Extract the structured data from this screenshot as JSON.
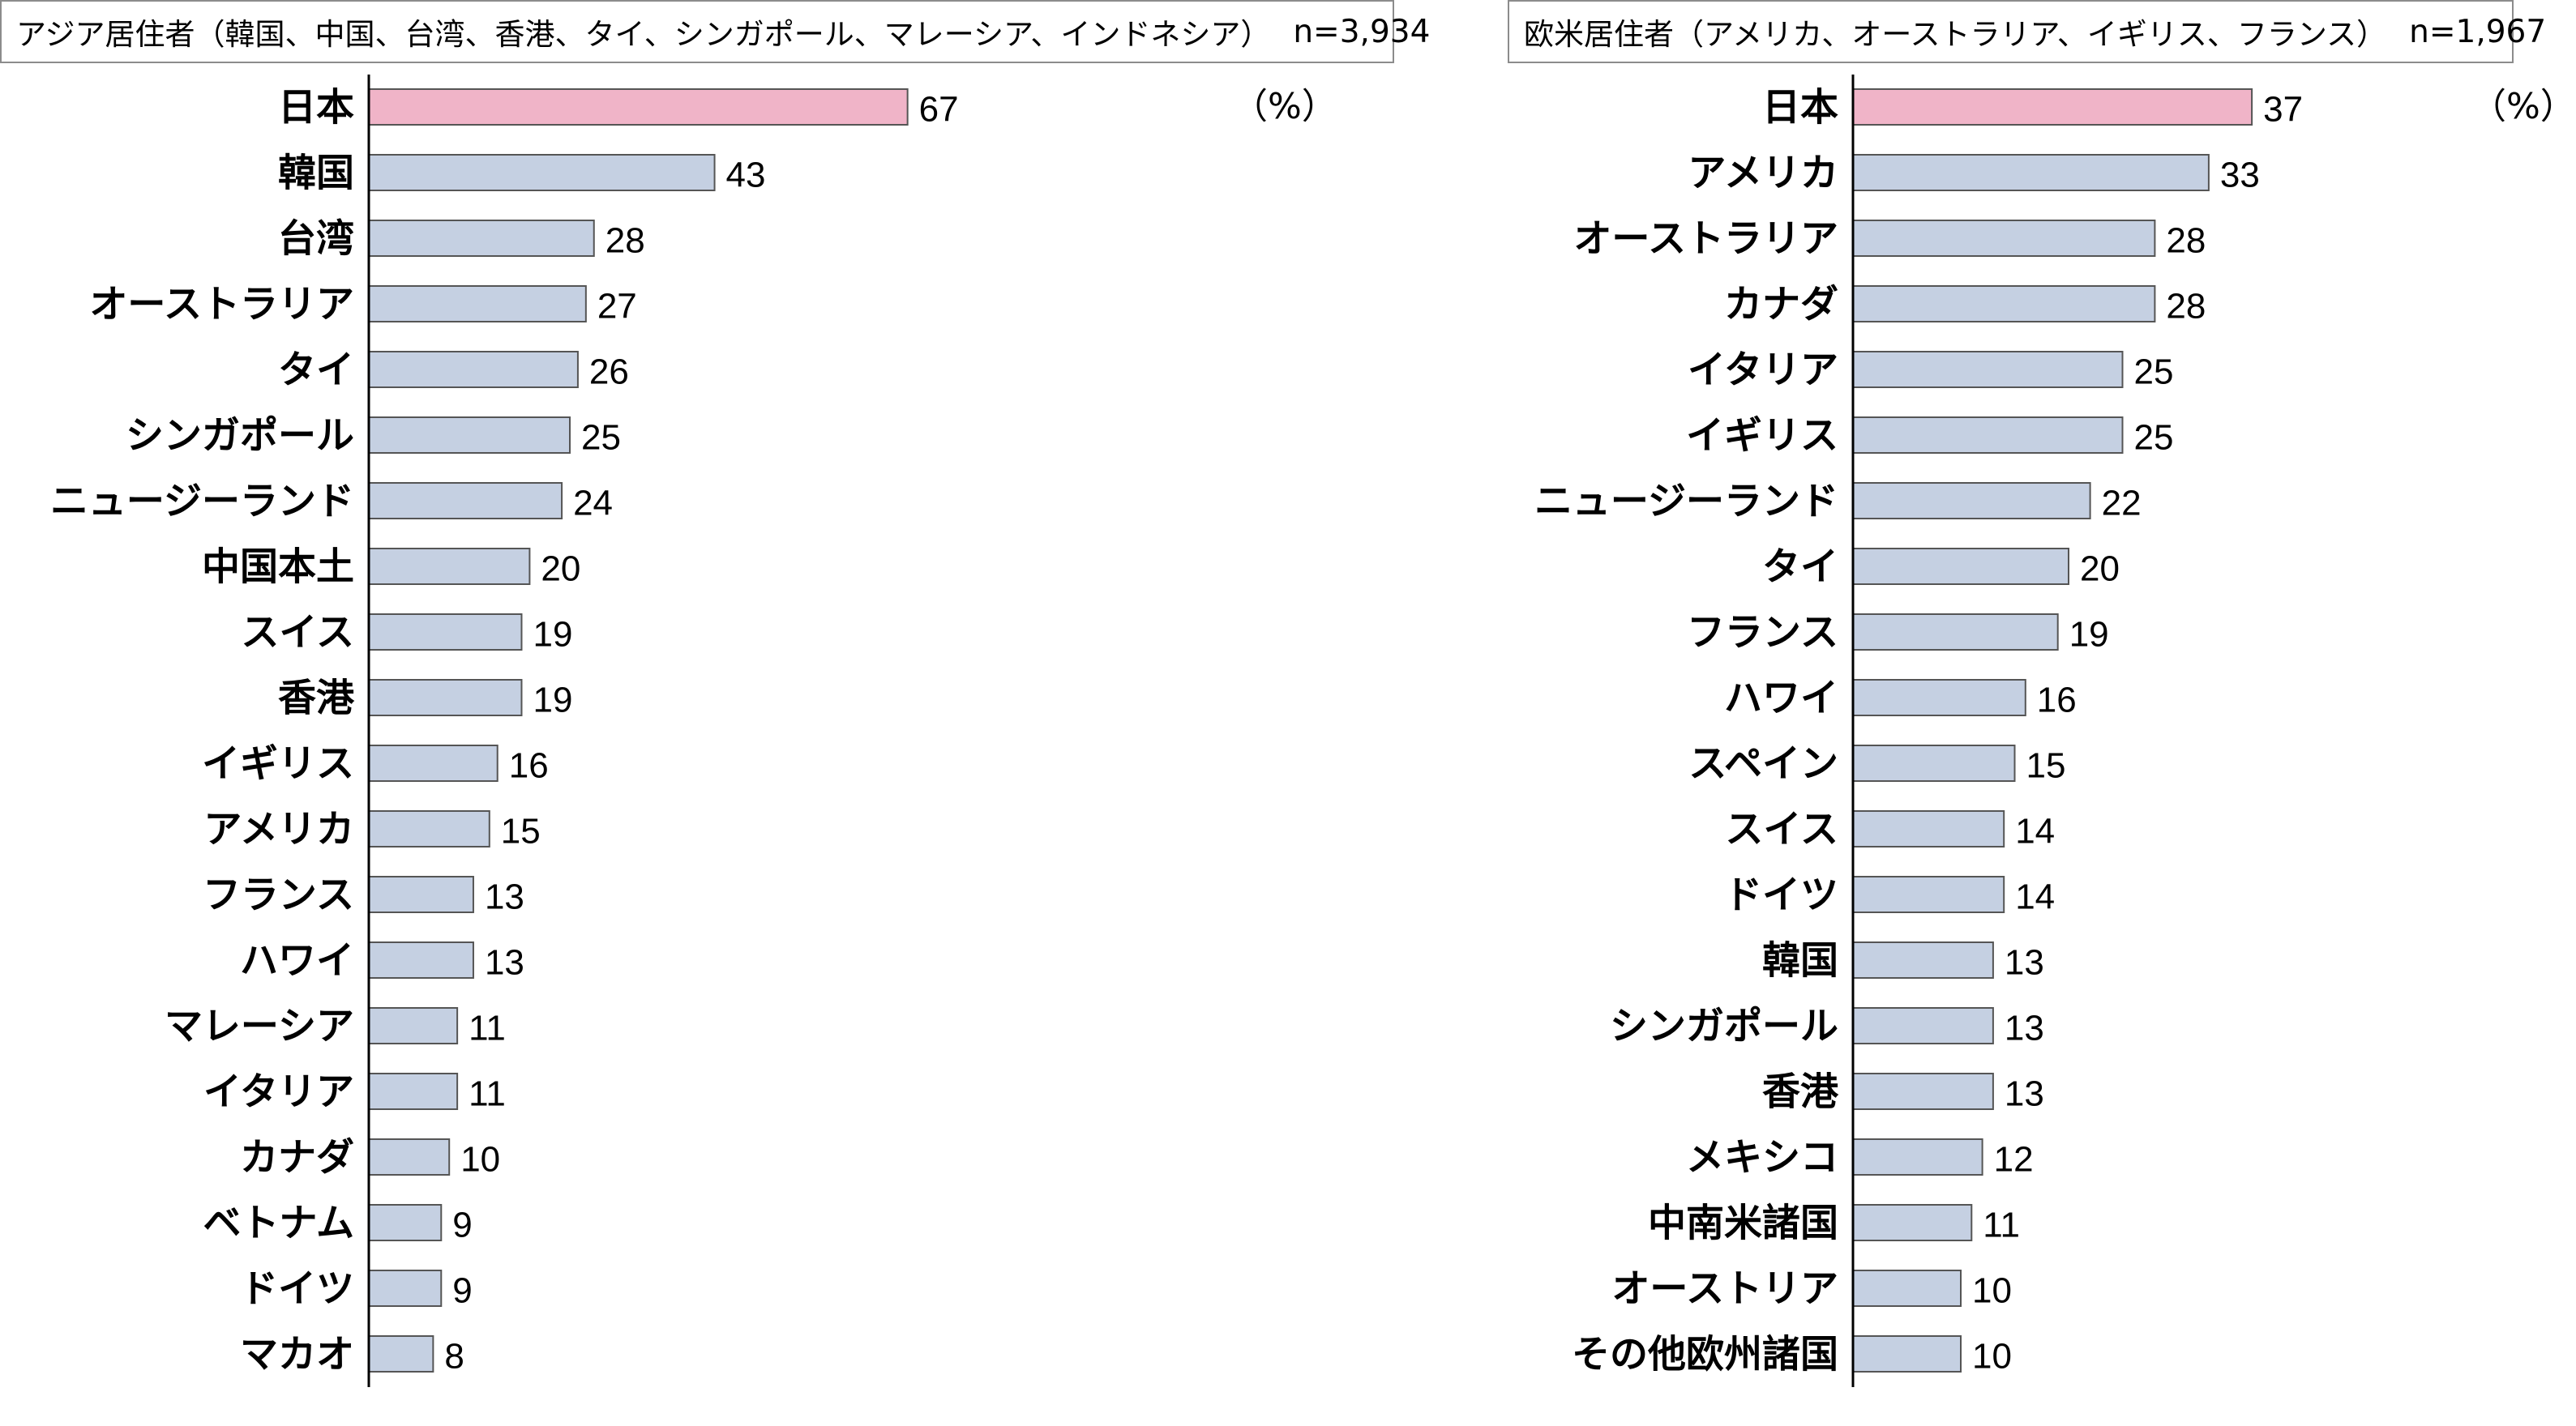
{
  "chart_data": [
    {
      "type": "bar",
      "orientation": "horizontal",
      "title": "アジア居住者（韓国、中国、台湾、香港、タイ、シンガポール、マレーシア、インドネシア）",
      "n_label": "n=3,934",
      "unit": "（%）",
      "categories": [
        "日本",
        "韓国",
        "台湾",
        "オーストラリア",
        "タイ",
        "シンガポール",
        "ニュージーランド",
        "中国本土",
        "スイス",
        "香港",
        "イギリス",
        "アメリカ",
        "フランス",
        "ハワイ",
        "マレーシア",
        "イタリア",
        "カナダ",
        "ベトナム",
        "ドイツ",
        "マカオ"
      ],
      "values": [
        67,
        43,
        28,
        27,
        26,
        25,
        24,
        20,
        19,
        19,
        16,
        15,
        13,
        13,
        11,
        11,
        10,
        9,
        9,
        8
      ],
      "highlight_category": "日本",
      "xlim": [
        0,
        100
      ],
      "grid": false,
      "colors": {
        "highlight": "#f0b4c8",
        "bar": "#c5d0e2",
        "bar_edge": "#555555",
        "axis": "#000000"
      }
    },
    {
      "type": "bar",
      "orientation": "horizontal",
      "title": "欧米居住者（アメリカ、オーストラリア、イギリス、フランス）",
      "n_label": "n=1,967",
      "unit": "（%）",
      "categories": [
        "日本",
        "アメリカ",
        "オーストラリア",
        "カナダ",
        "イタリア",
        "イギリス",
        "ニュージーランド",
        "タイ",
        "フランス",
        "ハワイ",
        "スペイン",
        "スイス",
        "ドイツ",
        "韓国",
        "シンガポール",
        "香港",
        "メキシコ",
        "中南米諸国",
        "オーストリア",
        "その他欧州諸国"
      ],
      "values": [
        37,
        33,
        28,
        28,
        25,
        25,
        22,
        20,
        19,
        16,
        15,
        14,
        14,
        13,
        13,
        13,
        12,
        11,
        10,
        10
      ],
      "highlight_category": "日本",
      "xlim": [
        0,
        60
      ],
      "grid": false,
      "colors": {
        "highlight": "#f0b4c8",
        "bar": "#c5d0e2",
        "bar_edge": "#555555",
        "axis": "#000000"
      }
    }
  ]
}
